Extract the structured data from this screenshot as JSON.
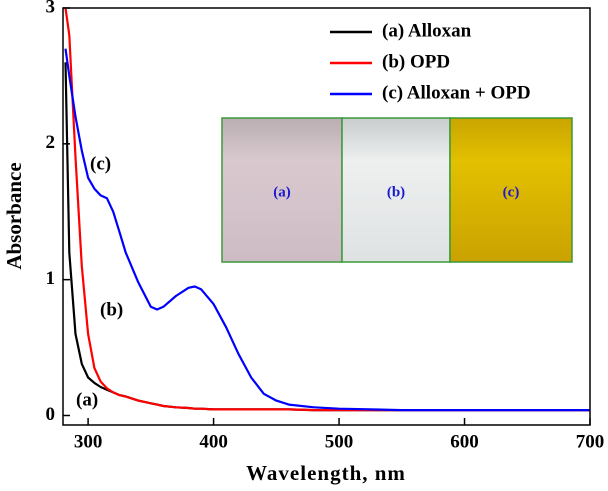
{
  "chart_data": {
    "type": "line",
    "x_label": "Wavelength, nm",
    "y_label": "Absorbance",
    "x": [
      282,
      285,
      290,
      295,
      300,
      305,
      310,
      315,
      320,
      325,
      330,
      340,
      350,
      355,
      360,
      370,
      380,
      385,
      390,
      400,
      410,
      420,
      430,
      440,
      450,
      460,
      480,
      500,
      550,
      600,
      650,
      700
    ],
    "series": [
      {
        "name": "(a) Alloxan",
        "color": "#000000",
        "values": [
          2.6,
          1.2,
          0.6,
          0.38,
          0.28,
          0.24,
          0.21,
          0.19,
          0.17,
          0.15,
          0.14,
          0.11,
          0.09,
          0.08,
          0.07,
          0.06,
          0.055,
          0.05,
          0.05,
          0.045,
          0.045,
          0.045,
          0.045,
          0.045,
          0.045,
          0.045,
          0.04,
          0.04,
          0.04,
          0.04,
          0.04,
          0.04
        ]
      },
      {
        "name": "(b) OPD",
        "color": "#ff0000",
        "values": [
          3.0,
          2.8,
          1.9,
          1.1,
          0.6,
          0.35,
          0.25,
          0.2,
          0.17,
          0.15,
          0.14,
          0.11,
          0.09,
          0.08,
          0.07,
          0.06,
          0.055,
          0.05,
          0.05,
          0.045,
          0.045,
          0.045,
          0.045,
          0.045,
          0.045,
          0.045,
          0.04,
          0.04,
          0.04,
          0.04,
          0.04,
          0.04
        ]
      },
      {
        "name": "(c) Alloxan + OPD",
        "color": "#0000ff",
        "values": [
          2.7,
          2.5,
          2.2,
          1.95,
          1.75,
          1.67,
          1.62,
          1.6,
          1.5,
          1.35,
          1.2,
          0.98,
          0.8,
          0.78,
          0.8,
          0.88,
          0.94,
          0.95,
          0.93,
          0.82,
          0.65,
          0.45,
          0.28,
          0.16,
          0.11,
          0.08,
          0.06,
          0.05,
          0.04,
          0.04,
          0.04,
          0.04
        ]
      }
    ],
    "xlim": [
      280,
      700
    ],
    "xticks": [
      300,
      400,
      500,
      600,
      700
    ],
    "ylim": [
      -0.07,
      3
    ],
    "yticks": [
      0,
      1,
      2,
      3
    ],
    "legend": "upper right",
    "annotations": [
      "(a)",
      "(b)",
      "(c)"
    ],
    "inset_labels": [
      "(a)",
      "(b)",
      "(c)"
    ]
  }
}
